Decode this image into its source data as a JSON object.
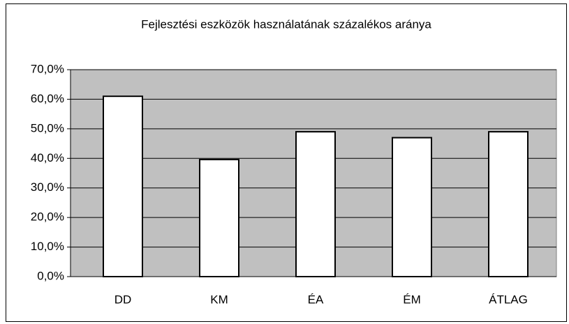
{
  "chart_data": {
    "type": "bar",
    "title": "Fejlesztési eszközök használatának százalékos aránya",
    "categories": [
      "DD",
      "KM",
      "ÉA",
      "ÉM",
      "ÁTLAG"
    ],
    "values": [
      61,
      39.6,
      49,
      47,
      49
    ],
    "color": "#ffffff",
    "ylim": [
      0,
      70
    ],
    "yticks": [
      {
        "value": 0,
        "label": "0,0%"
      },
      {
        "value": 10,
        "label": "10,0%"
      },
      {
        "value": 20,
        "label": "20,0%"
      },
      {
        "value": 30,
        "label": "30,0%"
      },
      {
        "value": 40,
        "label": "40,0%"
      },
      {
        "value": 50,
        "label": "50,0%"
      },
      {
        "value": 60,
        "label": "60,0%"
      },
      {
        "value": 70,
        "label": "70,0%"
      }
    ],
    "grid": true
  }
}
